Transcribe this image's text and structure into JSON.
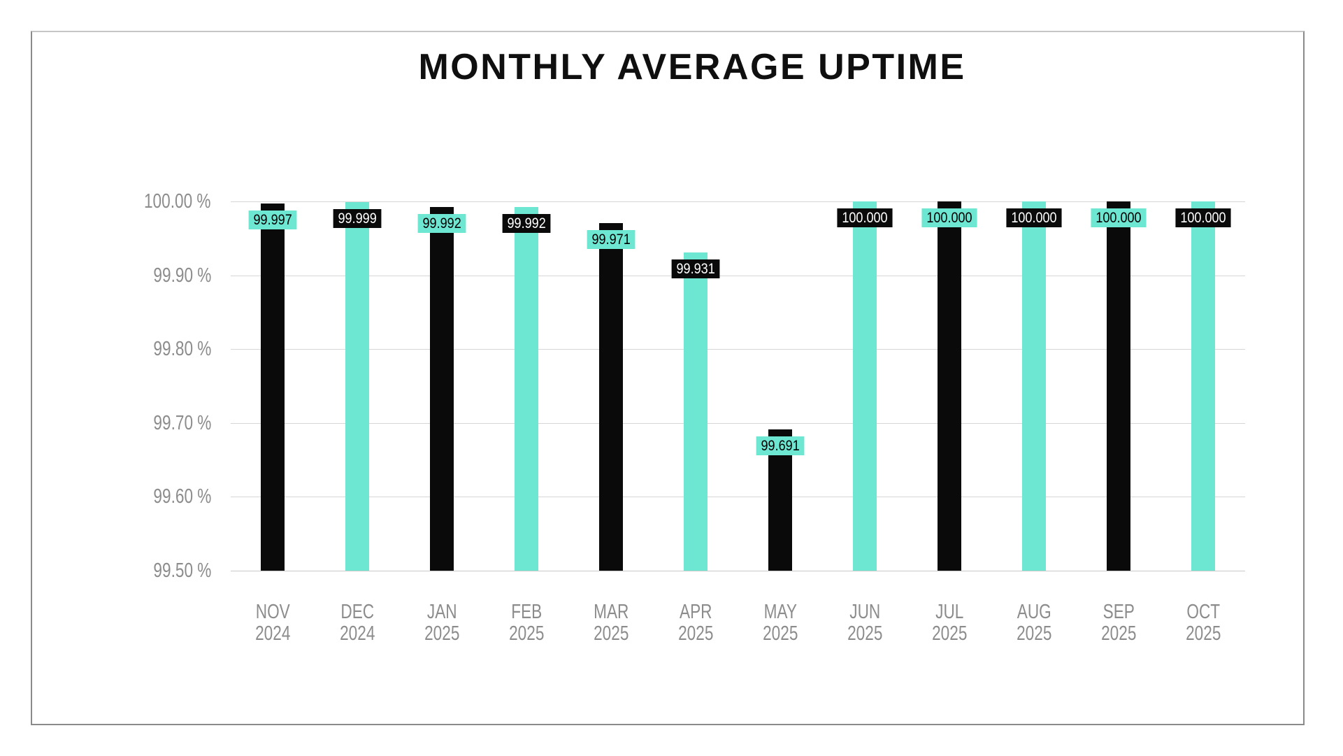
{
  "page": {
    "background": "#ffffff"
  },
  "canvas": {
    "border_color": "#8a8a8a"
  },
  "chart_data": {
    "type": "bar",
    "title": "MONTHLY AVERAGE UPTIME",
    "xlabel": "",
    "ylabel": "",
    "categories": [
      "NOV 2024",
      "DEC 2024",
      "JAN 2025",
      "FEB 2025",
      "MAR 2025",
      "APR 2025",
      "MAY 2025",
      "JUN 2025",
      "JUL 2025",
      "AUG 2025",
      "SEP 2025",
      "OCT 2025"
    ],
    "values": [
      99.997,
      99.999,
      99.992,
      99.992,
      99.971,
      99.931,
      99.691,
      100.0,
      100.0,
      100.0,
      100.0,
      100.0
    ],
    "value_labels": [
      "99.997",
      "99.999",
      "99.992",
      "99.992",
      "99.971",
      "99.931",
      "99.691",
      "100.000",
      "100.000",
      "100.000",
      "100.000",
      "100.000"
    ],
    "ylim": [
      99.5,
      100.0
    ],
    "yticks": [
      {
        "label": "100.00 %",
        "value": 100.0
      },
      {
        "label": "99.90 %",
        "value": 99.9
      },
      {
        "label": "99.80 %",
        "value": 99.8
      },
      {
        "label": "99.70 %",
        "value": 99.7
      },
      {
        "label": "99.60 %",
        "value": 99.6
      },
      {
        "label": "99.50 %",
        "value": 99.5
      }
    ],
    "grid": true,
    "legend": false,
    "bar_pattern": "alternating black and teal, starting with black"
  },
  "colors": {
    "bar_black": "#0a0a0a",
    "bar_teal": "#6de6d2",
    "label_on_black_bar_bg": "#6de6d2",
    "label_on_black_bar_text": "#000000",
    "label_on_teal_bar_bg": "#0a0a0a",
    "label_on_teal_bar_text": "#ffffff",
    "axis_text": "#8c8c8c",
    "gridline": "#d6d6d6",
    "title_text": "#0f0f0f"
  }
}
